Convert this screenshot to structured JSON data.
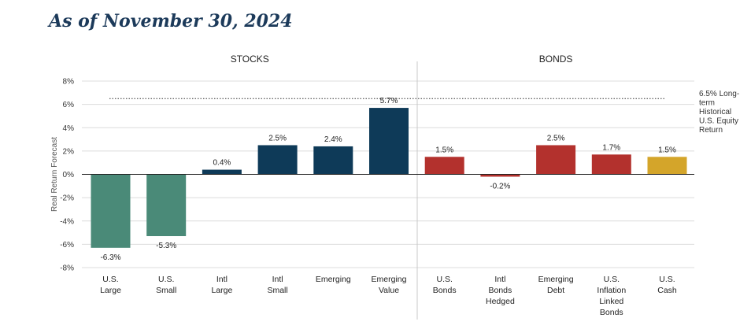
{
  "title": "As of November 30, 2024",
  "chart_data": {
    "type": "bar",
    "ylabel": "Real Return Forecast",
    "ylim": [
      -8,
      8
    ],
    "yticks": [
      8,
      6,
      4,
      2,
      0,
      -2,
      -4,
      -6,
      -8
    ],
    "ytick_labels": [
      "8%",
      "6%",
      "4%",
      "2%",
      "0%",
      "-2%",
      "-4%",
      "-6%",
      "-8%"
    ],
    "grid": true,
    "groups": [
      {
        "label": "STOCKS",
        "start": 0,
        "end": 5
      },
      {
        "label": "BONDS",
        "start": 6,
        "end": 10
      }
    ],
    "bars": [
      {
        "label": [
          "U.S.",
          "Large"
        ],
        "value": -6.3,
        "value_label": "-6.3%",
        "color": "#4a8a78"
      },
      {
        "label": [
          "U.S.",
          "Small"
        ],
        "value": -5.3,
        "value_label": "-5.3%",
        "color": "#4a8a78"
      },
      {
        "label": [
          "Intl",
          "Large"
        ],
        "value": 0.4,
        "value_label": "0.4%",
        "color": "#0e3a58"
      },
      {
        "label": [
          "Intl",
          "Small"
        ],
        "value": 2.5,
        "value_label": "2.5%",
        "color": "#0e3a58"
      },
      {
        "label": [
          "Emerging"
        ],
        "value": 2.4,
        "value_label": "2.4%",
        "color": "#0e3a58"
      },
      {
        "label": [
          "Emerging",
          "Value"
        ],
        "value": 5.7,
        "value_label": "5.7%",
        "color": "#0e3a58"
      },
      {
        "label": [
          "U.S.",
          "Bonds"
        ],
        "value": 1.5,
        "value_label": "1.5%",
        "color": "#b3312d"
      },
      {
        "label": [
          "Intl",
          "Bonds",
          "Hedged"
        ],
        "value": -0.2,
        "value_label": "-0.2%",
        "color": "#b3312d"
      },
      {
        "label": [
          "Emerging",
          "Debt"
        ],
        "value": 2.5,
        "value_label": "2.5%",
        "color": "#b3312d"
      },
      {
        "label": [
          "U.S.",
          "Inflation",
          "Linked",
          "Bonds"
        ],
        "value": 1.7,
        "value_label": "1.7%",
        "color": "#b3312d"
      },
      {
        "label": [
          "U.S.",
          "Cash"
        ],
        "value": 1.5,
        "value_label": "1.5%",
        "color": "#d4a52a"
      }
    ],
    "reference_line": {
      "value": 6.5,
      "label": [
        "6.5% Long-",
        "term",
        "Historical",
        "U.S. Equity",
        "Return"
      ]
    }
  }
}
